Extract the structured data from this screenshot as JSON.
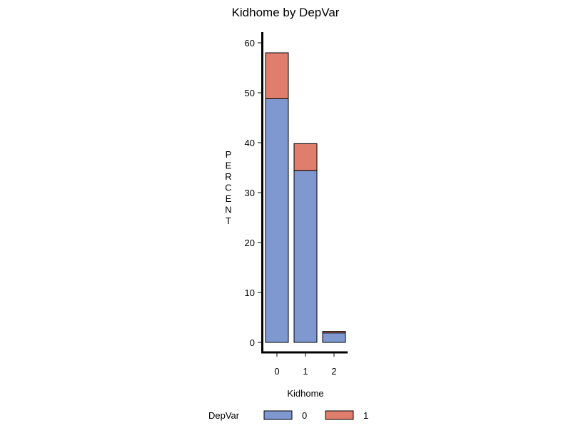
{
  "chart_data": {
    "type": "bar",
    "stacked": true,
    "title": "Kidhome by DepVar",
    "xlabel": "Kidhome",
    "ylabel": "PERCENT",
    "categories": [
      "0",
      "1",
      "2"
    ],
    "series": [
      {
        "name": "0",
        "values": [
          48.8,
          34.4,
          1.9
        ],
        "color": "#7f98cf"
      },
      {
        "name": "1",
        "values": [
          9.2,
          5.4,
          0.3
        ],
        "color": "#e07e6d"
      }
    ],
    "ylim": [
      0,
      60
    ],
    "yticks": [
      0,
      10,
      20,
      30,
      40,
      50,
      60
    ],
    "legend": {
      "title": "DepVar",
      "position": "bottom"
    },
    "grid": false
  }
}
